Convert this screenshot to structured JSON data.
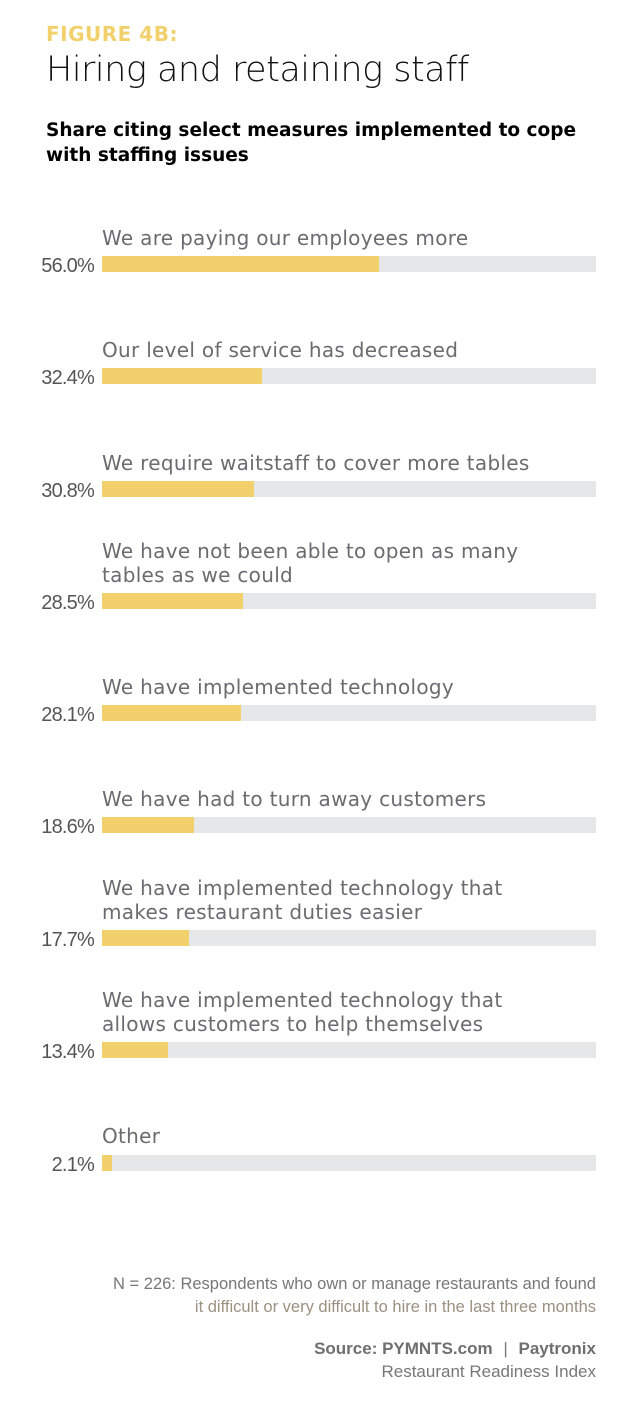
{
  "header": {
    "figure_label": "FIGURE 4B:",
    "title": "Hiring and retaining staff",
    "subtitle": "Share citing select measures implemented to cope with staffing issues"
  },
  "colors": {
    "accent": "#f2d06b",
    "track": "#e6e7e8",
    "label_text": "#6b6b70"
  },
  "chart_data": {
    "type": "bar",
    "orientation": "horizontal",
    "title": "Hiring and retaining staff",
    "subtitle": "Share citing select measures implemented to cope with staffing issues",
    "xlabel": "",
    "ylabel": "",
    "xlim": [
      0,
      100
    ],
    "grid": false,
    "legend": "none",
    "unit": "%",
    "categories": [
      "We are paying our employees more",
      "Our level of service has decreased",
      "We require waitstaff to cover more tables",
      "We have not been able to open as many tables as we could",
      "We have implemented technology",
      "We have had to turn away customers",
      "We have implemented technology that makes restaurant duties easier",
      "We have implemented technology that allows customers to help themselves",
      "Other"
    ],
    "values": [
      56.0,
      32.4,
      30.8,
      28.5,
      28.1,
      18.6,
      17.7,
      13.4,
      2.1
    ]
  },
  "rows": [
    {
      "label": "We are paying our employees more",
      "value": "56.0%",
      "pct": 56.0
    },
    {
      "label": "Our level of service has decreased",
      "value": "32.4%",
      "pct": 32.4
    },
    {
      "label": "We require waitstaff to cover more tables",
      "value": "30.8%",
      "pct": 30.8
    },
    {
      "label": "We have not been able to open as many tables as we could",
      "value": "28.5%",
      "pct": 28.5
    },
    {
      "label": "We have implemented technology",
      "value": "28.1%",
      "pct": 28.1
    },
    {
      "label": "We have had to turn away customers",
      "value": "18.6%",
      "pct": 18.6
    },
    {
      "label": "We have implemented technology that makes restaurant duties easier",
      "value": "17.7%",
      "pct": 17.7
    },
    {
      "label": "We have implemented technology that allows customers to help themselves",
      "value": "13.4%",
      "pct": 13.4
    },
    {
      "label": "Other",
      "value": "2.1%",
      "pct": 2.1
    }
  ],
  "footer": {
    "note_line1": "N = 226: Respondents who own or manage restaurants and found",
    "note_line2": "it difficult or very difficult to hire in the last three months",
    "source_prefix": "Source: PYMNTS.com",
    "source_sep": "|",
    "source_partner": "Paytronix",
    "source_report": "Restaurant Readiness Index"
  }
}
